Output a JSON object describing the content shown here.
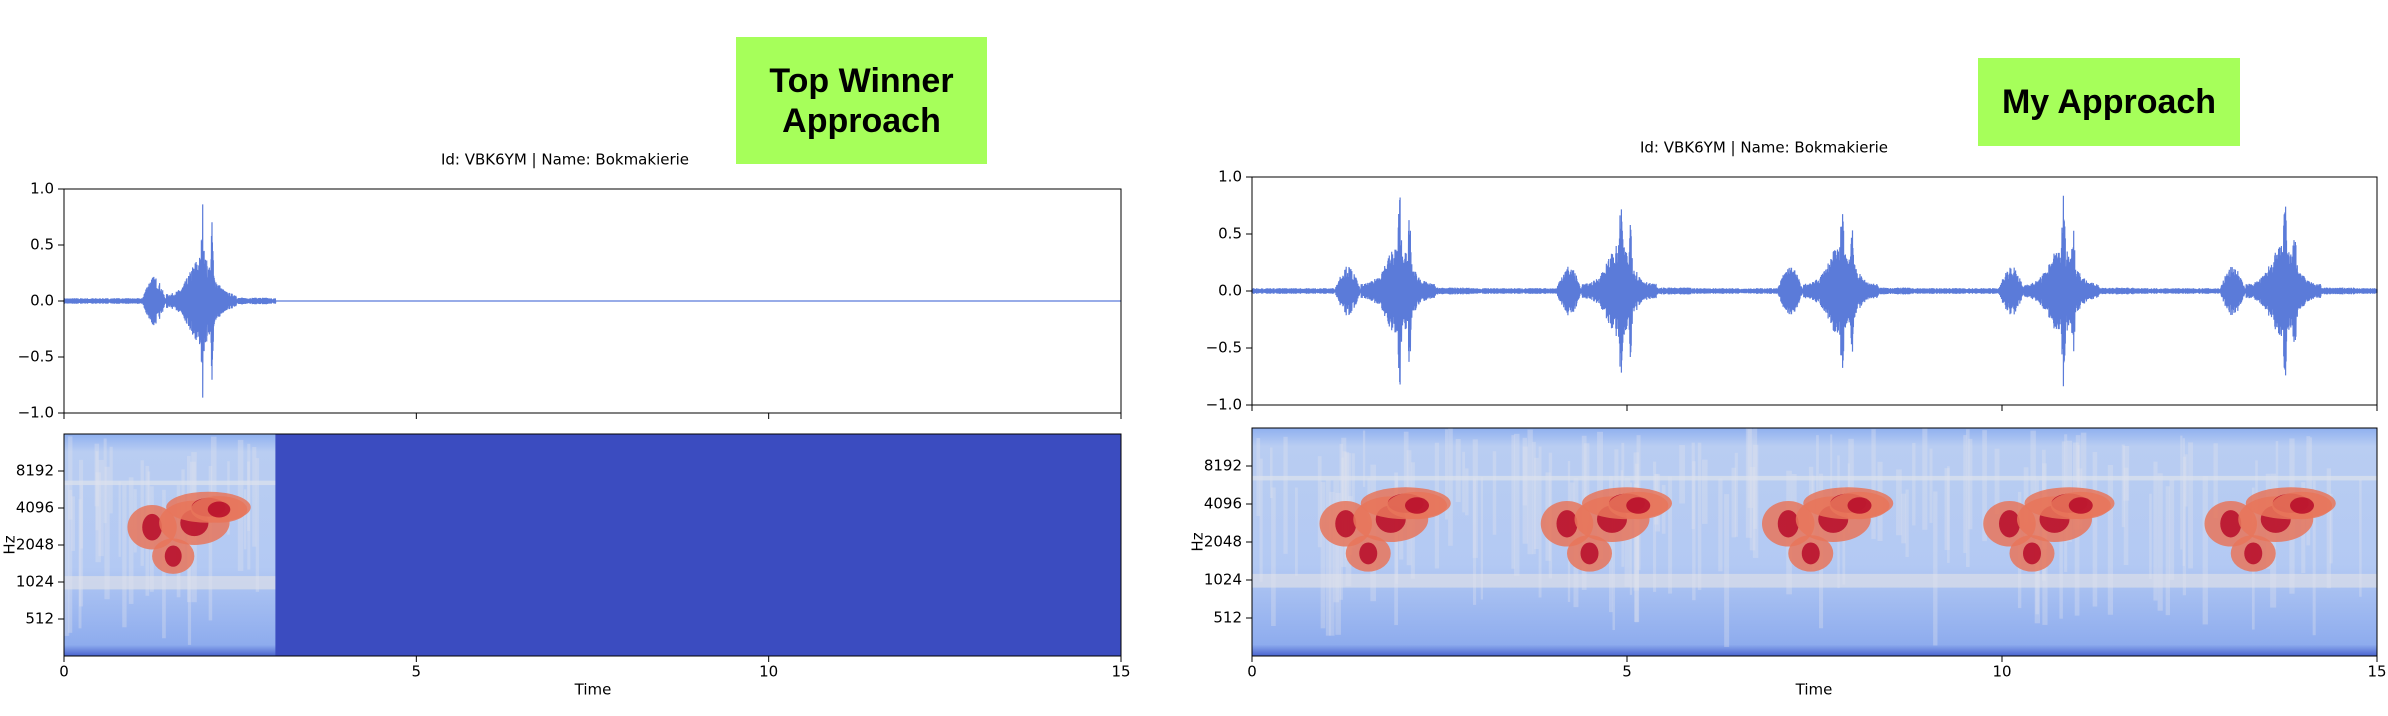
{
  "chart_data": [
    {
      "type": "line",
      "title": "Id: VBK6YM | Name: Bokmakierie",
      "annotation": "Top Winner Approach",
      "color": "#5b7bd9",
      "xlim": [
        0,
        15
      ],
      "xticks": [
        0,
        5,
        10,
        15
      ],
      "ylim": [
        -1,
        1
      ],
      "yticks": [
        {
          "value": -1,
          "label": "−1.0"
        },
        {
          "value": -0.5,
          "label": "−0.5"
        },
        {
          "value": 0,
          "label": "0.0"
        },
        {
          "value": 0.5,
          "label": "0.5"
        },
        {
          "value": 1,
          "label": "1.0"
        }
      ]
    },
    {
      "type": "heatmap",
      "xlabel": "Time",
      "ylabel": "Hz",
      "xlim": [
        0,
        15
      ],
      "xticks": [
        0,
        5,
        10,
        15
      ],
      "yscale": "log",
      "ylim": [
        256,
        16384
      ],
      "yticks": [
        512,
        1024,
        2048,
        4096,
        8192
      ]
    },
    {
      "type": "line",
      "title": "Id: VBK6YM | Name: Bokmakierie",
      "annotation": "My Approach",
      "color": "#5b7bd9",
      "xlim": [
        0,
        15
      ],
      "xticks": [
        0,
        5,
        10,
        15
      ],
      "ylim": [
        -1,
        1
      ],
      "yticks": [
        {
          "value": -1,
          "label": "−1.0"
        },
        {
          "value": -0.5,
          "label": "−0.5"
        },
        {
          "value": 0,
          "label": "0.0"
        },
        {
          "value": 0.5,
          "label": "0.5"
        },
        {
          "value": 1,
          "label": "1.0"
        }
      ]
    },
    {
      "type": "heatmap",
      "xlabel": "Time",
      "ylabel": "Hz",
      "xlim": [
        0,
        15
      ],
      "xticks": [
        0,
        5,
        10,
        15
      ],
      "yscale": "log",
      "ylim": [
        256,
        16384
      ],
      "yticks": [
        512,
        1024,
        2048,
        4096,
        8192
      ]
    }
  ]
}
